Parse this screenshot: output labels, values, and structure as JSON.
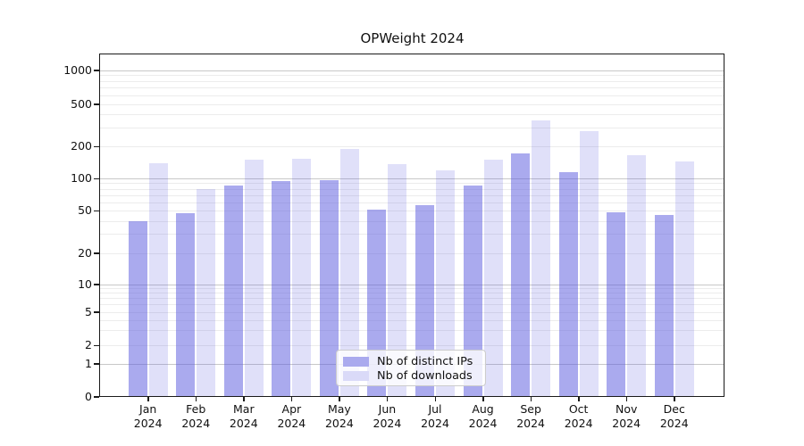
{
  "title": "OPWeight 2024",
  "chart_data": {
    "type": "bar",
    "title": "OPWeight 2024",
    "categories": [
      "Jan 2024",
      "Feb 2024",
      "Mar 2024",
      "Apr 2024",
      "May 2024",
      "Jun 2024",
      "Jul 2024",
      "Aug 2024",
      "Sep 2024",
      "Oct 2024",
      "Nov 2024",
      "Dec 2024"
    ],
    "series": [
      {
        "name": "Nb of distinct IPs",
        "color": "rgba(85,85,221,0.50)",
        "legend_color": "#aaaaee",
        "values": [
          40,
          47,
          85,
          94,
          97,
          51,
          56,
          85,
          170,
          115,
          48,
          45
        ]
      },
      {
        "name": "Nb of downloads",
        "color": "rgba(85,85,221,0.185)",
        "legend_color": "#dadaf8",
        "values": [
          138,
          80,
          150,
          153,
          190,
          136,
          120,
          150,
          350,
          280,
          165,
          145
        ]
      }
    ],
    "xlabel": "",
    "ylabel": "",
    "yscale": "log-like (symlog)",
    "y_ticks": [
      0,
      1,
      2,
      5,
      10,
      20,
      50,
      100,
      200,
      500,
      1000
    ],
    "ylim": [
      0,
      1500
    ],
    "grid": true,
    "grid_major_color": "#c8c8c8",
    "grid_minor_color": "#ececec",
    "legend_position": "lower center",
    "background_color": "#ffffff"
  }
}
